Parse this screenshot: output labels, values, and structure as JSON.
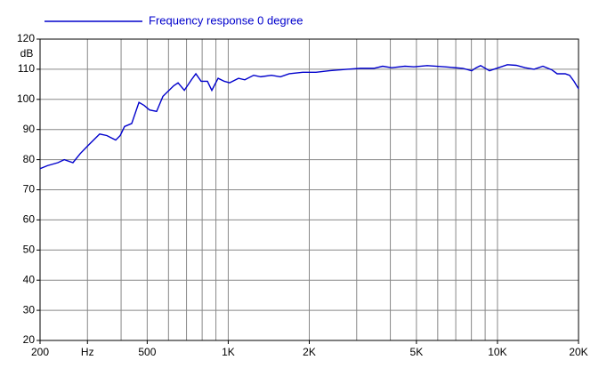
{
  "chart_data": {
    "type": "line",
    "ylabel": "dB",
    "log_x": true,
    "grid": true,
    "xlim": [
      200,
      20000
    ],
    "ylim": [
      20,
      120
    ],
    "xticks": [
      200,
      {
        "value": 300,
        "label": "Hz"
      },
      500,
      {
        "value": 1000,
        "label": "1K"
      },
      {
        "value": 2000,
        "label": "2K"
      },
      {
        "value": 5000,
        "label": "5K"
      },
      {
        "value": 10000,
        "label": "10K"
      },
      {
        "value": 20000,
        "label": "20K"
      }
    ],
    "xgrid": [
      300,
      400,
      500,
      600,
      700,
      800,
      900,
      1000,
      2000,
      3000,
      4000,
      5000,
      6000,
      7000,
      8000,
      9000,
      10000
    ],
    "yticks": [
      20,
      30,
      40,
      50,
      60,
      70,
      80,
      90,
      100,
      110,
      120
    ],
    "x": [
      200,
      213,
      233,
      246,
      265,
      282,
      304,
      333,
      354,
      382,
      397,
      412,
      438,
      466,
      487,
      510,
      542,
      572,
      627,
      651,
      687,
      730,
      758,
      793,
      837,
      869,
      917,
      967,
      1012,
      1092,
      1152,
      1243,
      1321,
      1447,
      1562,
      1685,
      1890,
      2118,
      2375,
      2763,
      3099,
      3473,
      3747,
      4044,
      4534,
      4892,
      5483,
      6383,
      7435,
      8023,
      8331,
      8658,
      9340,
      10080,
      10880,
      11740,
      12670,
      13670,
      14750,
      15920,
      16660,
      17850,
      18530,
      19250,
      20000
    ],
    "series": [
      {
        "name": "Frequency response 0 degree",
        "color": "#0000cc",
        "values": [
          77,
          78,
          79,
          80,
          79,
          82,
          85,
          88.5,
          88,
          86.5,
          88,
          91,
          92,
          99,
          98,
          96.5,
          96,
          101,
          104.5,
          105.5,
          103,
          106.5,
          108.5,
          106,
          106,
          103,
          107,
          106,
          105.5,
          107,
          106.5,
          108,
          107.5,
          108,
          107.5,
          108.5,
          109,
          109,
          109.5,
          110,
          110.3,
          110.3,
          111,
          110.5,
          111,
          110.8,
          111.2,
          110.8,
          110.3,
          109.5,
          110.5,
          111.2,
          109.5,
          110.5,
          111.5,
          111.3,
          110.5,
          110,
          111,
          109.8,
          108.5,
          108.5,
          108,
          106,
          103.5
        ]
      }
    ]
  }
}
